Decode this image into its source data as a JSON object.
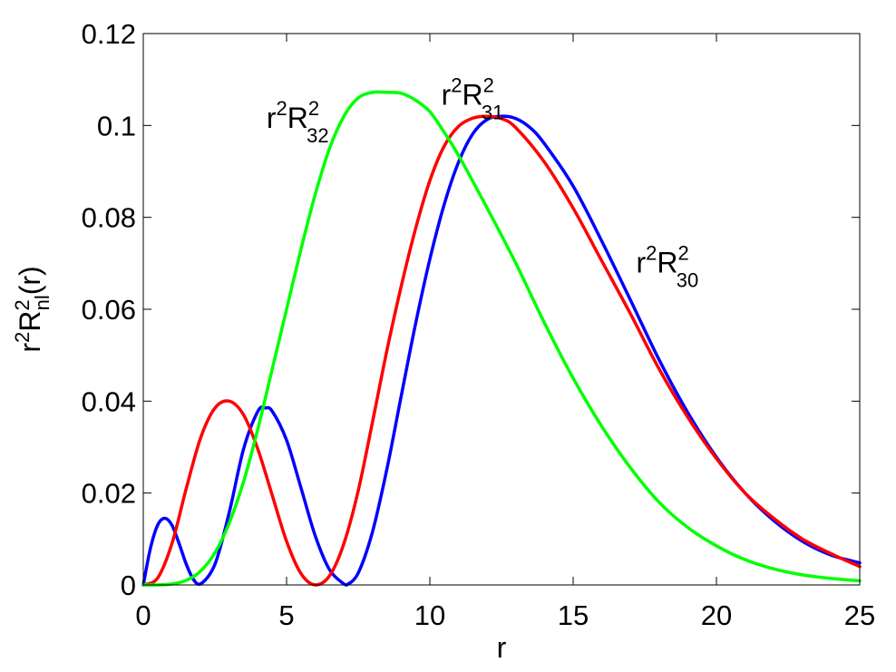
{
  "chart_data": {
    "type": "line",
    "title": "",
    "xlabel": "r",
    "ylabel": {
      "base": "r",
      "sup1": "2",
      "mid": "R",
      "sup2": "2",
      "sub": "nl",
      "tail": "(r)"
    },
    "xlim": [
      0,
      25
    ],
    "ylim": [
      0,
      0.12
    ],
    "xticks": [
      0,
      5,
      10,
      15,
      20,
      25
    ],
    "xtick_labels": [
      "0",
      "5",
      "10",
      "15",
      "20",
      "25"
    ],
    "yticks": [
      0,
      0.02,
      0.04,
      0.06,
      0.08,
      0.1,
      0.12
    ],
    "ytick_labels": [
      "0",
      "0.02",
      "0.04",
      "0.06",
      "0.08",
      "0.1",
      "0.12"
    ],
    "grid": false,
    "legend": "none",
    "series": [
      {
        "name": "r2R2 30",
        "label": {
          "base": "r",
          "sup1": "2",
          "mid": "R",
          "sup2": "2",
          "sub": "30",
          "x": 17.2,
          "y": 0.068
        },
        "color": "#0000ff",
        "x": [
          0,
          0.25,
          0.5,
          0.75,
          1.0,
          1.25,
          1.5,
          1.75,
          2.0,
          2.5,
          3.0,
          3.5,
          4.0,
          4.25,
          4.5,
          5.0,
          5.5,
          6.0,
          6.5,
          7.0,
          7.1,
          7.5,
          8.0,
          8.5,
          9.0,
          9.5,
          10.0,
          10.5,
          11.0,
          11.5,
          12.0,
          12.5,
          13.0,
          13.5,
          14.0,
          15.0,
          16.0,
          17.0,
          18.0,
          19.0,
          20.0,
          21.0,
          22.0,
          23.0,
          24.0,
          25.0
        ],
        "y": [
          0,
          0.008,
          0.013,
          0.0145,
          0.013,
          0.009,
          0.0045,
          0.0012,
          0.0002,
          0.0045,
          0.0158,
          0.0296,
          0.0378,
          0.0385,
          0.0378,
          0.0315,
          0.0212,
          0.0107,
          0.0033,
          0.0002,
          0.0,
          0.0026,
          0.0116,
          0.0252,
          0.0411,
          0.0568,
          0.0709,
          0.0828,
          0.092,
          0.0982,
          0.1013,
          0.102,
          0.1015,
          0.0995,
          0.096,
          0.0868,
          0.0748,
          0.062,
          0.049,
          0.0375,
          0.0278,
          0.02,
          0.014,
          0.0095,
          0.0065,
          0.0048
        ]
      },
      {
        "name": "r2R2 31",
        "label": {
          "base": "r",
          "sup1": "2",
          "mid": "R",
          "sup2": "2",
          "sub": "31",
          "x": 10.4,
          "y": 0.1045
        },
        "color": "#ff0000",
        "x": [
          0,
          0.5,
          1.0,
          1.5,
          2.0,
          2.5,
          3.0,
          3.5,
          4.0,
          4.5,
          5.0,
          5.5,
          6.0,
          6.5,
          7.0,
          7.5,
          8.0,
          8.5,
          9.0,
          9.5,
          10.0,
          10.5,
          11.0,
          11.5,
          12.0,
          12.5,
          13.0,
          14.0,
          15.0,
          16.0,
          17.0,
          18.0,
          19.0,
          20.0,
          21.0,
          22.0,
          23.0,
          24.0,
          25.0
        ],
        "y": [
          0,
          0.0015,
          0.009,
          0.021,
          0.032,
          0.0385,
          0.04,
          0.037,
          0.0295,
          0.0195,
          0.0095,
          0.0025,
          0.0,
          0.002,
          0.009,
          0.0205,
          0.0355,
          0.051,
          0.065,
          0.0775,
          0.088,
          0.0955,
          0.0998,
          0.1016,
          0.102,
          0.1015,
          0.0995,
          0.092,
          0.082,
          0.0705,
          0.059,
          0.047,
          0.0365,
          0.0275,
          0.02,
          0.0145,
          0.01,
          0.0068,
          0.004
        ]
      },
      {
        "name": "r2R2 32",
        "label": {
          "base": "r",
          "sup1": "2",
          "mid": "R",
          "sup2": "2",
          "sub": "32",
          "x": 4.3,
          "y": 0.0995
        },
        "color": "#00ff00",
        "x": [
          0,
          0.5,
          1.0,
          1.5,
          2.0,
          2.5,
          3.0,
          3.5,
          4.0,
          4.5,
          5.0,
          5.5,
          6.0,
          6.5,
          7.0,
          7.5,
          8.0,
          8.5,
          9.0,
          9.5,
          10.0,
          10.5,
          11.0,
          12.0,
          13.0,
          14.0,
          15.0,
          16.0,
          17.0,
          18.0,
          19.0,
          20.0,
          21.0,
          22.0,
          23.0,
          24.0,
          25.0
        ],
        "y": [
          0,
          0.0,
          0.0002,
          0.001,
          0.003,
          0.007,
          0.0135,
          0.0225,
          0.034,
          0.047,
          0.06,
          0.073,
          0.085,
          0.095,
          0.102,
          0.106,
          0.1072,
          0.1072,
          0.107,
          0.1055,
          0.103,
          0.0985,
          0.0935,
          0.082,
          0.07,
          0.057,
          0.045,
          0.0345,
          0.0255,
          0.018,
          0.0125,
          0.0085,
          0.0055,
          0.0035,
          0.0022,
          0.0014,
          0.0009
        ]
      }
    ]
  }
}
